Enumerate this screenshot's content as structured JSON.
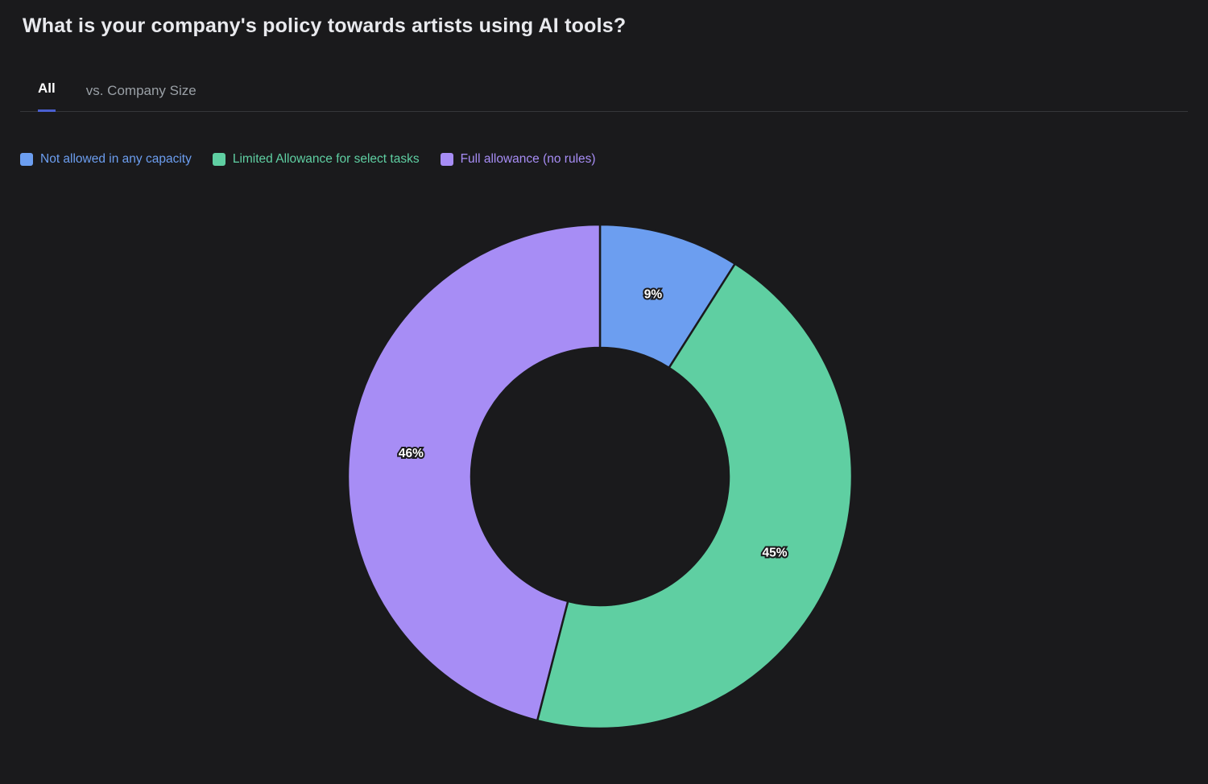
{
  "page": {
    "title": "What is your company's policy towards artists using AI tools?"
  },
  "tabs": [
    {
      "label": "All",
      "active": true
    },
    {
      "label": "vs. Company Size",
      "active": false
    }
  ],
  "legend": {
    "items": [
      {
        "label": "Not allowed in any capacity",
        "color": "#6c9ef0"
      },
      {
        "label": "Limited Allowance for select tasks",
        "color": "#5fcfa2"
      },
      {
        "label": "Full allowance (no rules)",
        "color": "#a78df5"
      }
    ]
  },
  "chart_data": {
    "type": "pie",
    "subtype": "donut",
    "title": "What is your company's policy towards artists using AI tools?",
    "categories": [
      "Not allowed in any capacity",
      "Limited Allowance for select tasks",
      "Full allowance (no rules)"
    ],
    "values": [
      9,
      45,
      46
    ],
    "data_labels": [
      "9%",
      "45%",
      "46%"
    ],
    "colors": [
      "#6c9ef0",
      "#5fcfa2",
      "#a78df5"
    ],
    "slice_separator_color": "#1a1a1c",
    "start_angle_deg": -90,
    "direction": "clockwise",
    "donut_hole_ratio": 0.51,
    "legend_position": "top-left",
    "grid": false
  },
  "theme": {
    "background": "#1a1a1c",
    "title_color": "#e9eaee",
    "tab_active_color": "#ffffff",
    "tab_inactive_color": "#9aa0a6",
    "tab_underline_color": "#4a5fd0",
    "divider_color": "#35363a",
    "data_label_color": "#ffffff"
  }
}
